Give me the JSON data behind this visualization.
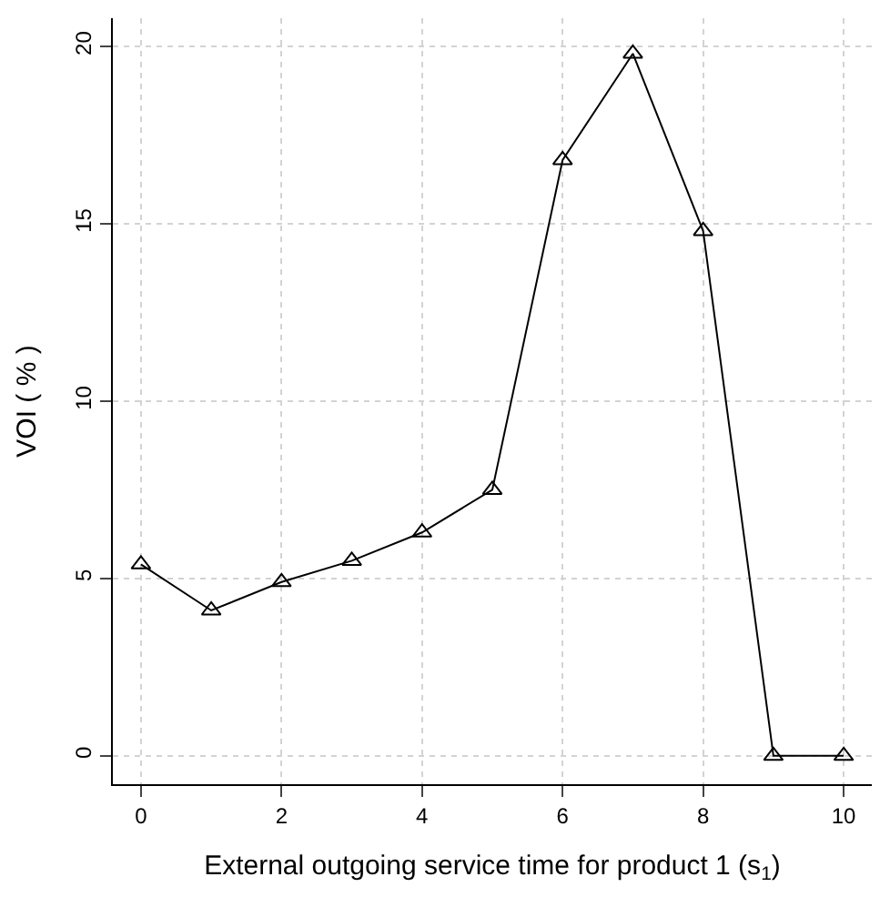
{
  "chart_data": {
    "type": "line",
    "xlabel": "External outgoing service time for product 1 (s$_{1}$)",
    "ylabel": "VOI ( % )",
    "x": [
      0,
      1,
      2,
      3,
      4,
      5,
      6,
      7,
      8,
      9,
      10
    ],
    "series": [
      {
        "color": "#000000",
        "values": [
          5.4,
          4.1,
          4.9,
          5.5,
          6.3,
          7.5,
          16.8,
          19.8,
          14.8,
          0,
          0
        ]
      }
    ],
    "xlim": [
      -0.4,
      10.4
    ],
    "ylim": [
      -0.8,
      20.8
    ],
    "xticks": [
      0,
      2,
      4,
      6,
      8,
      10
    ],
    "yticks": [
      0,
      5,
      10,
      15,
      20
    ],
    "grid": true,
    "marker": "triangle",
    "line_style": "solid",
    "legend": false
  }
}
